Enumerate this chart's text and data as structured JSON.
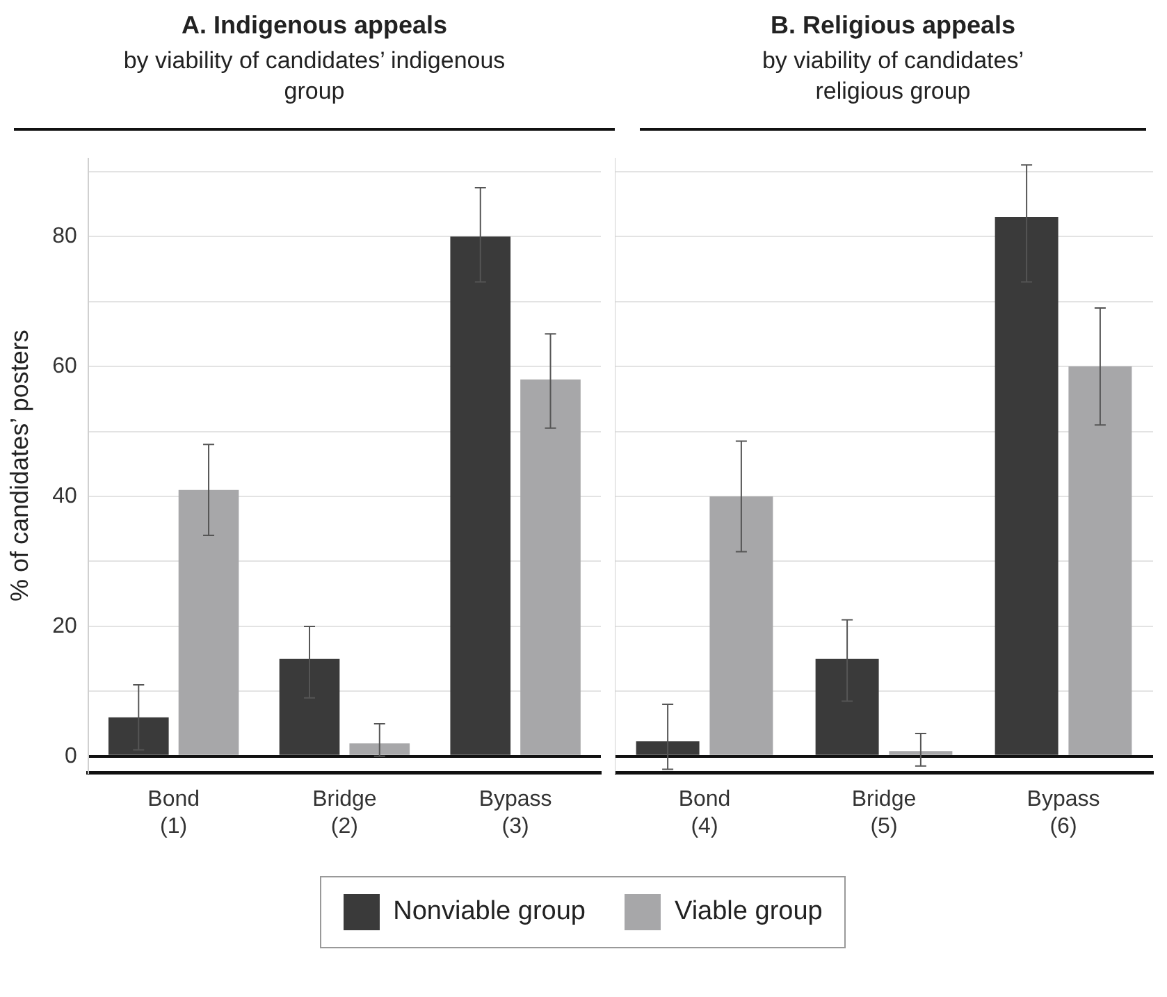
{
  "chart_data": [
    {
      "type": "bar",
      "title": "A. Indigenous appeals",
      "subtitle": "by viability of candidates’ indigenous group",
      "ylabel": "% of candidates’ posters",
      "categories": [
        "Bond\n(1)",
        "Bridge\n(2)",
        "Bypass\n(3)"
      ],
      "series": [
        {
          "name": "Nonviable group",
          "color": "#3a3a3a",
          "values": [
            6,
            15,
            80
          ],
          "errors": [
            [
              1,
              11
            ],
            [
              9,
              20
            ],
            [
              73,
              87.5
            ]
          ]
        },
        {
          "name": "Viable group",
          "color": "#a7a7a9",
          "values": [
            41,
            2,
            58
          ],
          "errors": [
            [
              34,
              48
            ],
            [
              0,
              5
            ],
            [
              50.5,
              65
            ]
          ]
        }
      ],
      "ylim": [
        -2.5,
        92
      ],
      "yticks": [
        0,
        {
          "value": 10,
          "label": null
        },
        20,
        {
          "value": 30,
          "label": null
        },
        40,
        {
          "value": 50,
          "label": null
        },
        60,
        {
          "value": 70,
          "label": null
        },
        80,
        {
          "value": 90,
          "label": null
        }
      ],
      "grid": "y",
      "legend": "bottom"
    },
    {
      "type": "bar",
      "title": "B. Religious appeals",
      "subtitle": "by viability of candidates’ religious group",
      "categories": [
        "Bond\n(4)",
        "Bridge\n(5)",
        "Bypass\n(6)"
      ],
      "series": [
        {
          "color": "#3a3a3a",
          "values": [
            2.3,
            15,
            83
          ],
          "errors": [
            [
              -2,
              8
            ],
            [
              8.5,
              21
            ],
            [
              73,
              91
            ]
          ]
        },
        {
          "color": "#a7a7a9",
          "values": [
            40,
            0.8,
            60
          ],
          "errors": [
            [
              31.5,
              48.5
            ],
            [
              -1.5,
              3.5
            ],
            [
              51,
              69
            ]
          ]
        }
      ],
      "ylim": [
        -2.5,
        92
      ],
      "yticks": [
        0,
        {
          "value": 10,
          "label": null
        },
        20,
        {
          "value": 30,
          "label": null
        },
        40,
        {
          "value": 50,
          "label": null
        },
        60,
        {
          "value": 70,
          "label": null
        },
        80,
        {
          "value": 90,
          "label": null
        }
      ],
      "grid": "y",
      "tick_labels": "x"
    }
  ]
}
